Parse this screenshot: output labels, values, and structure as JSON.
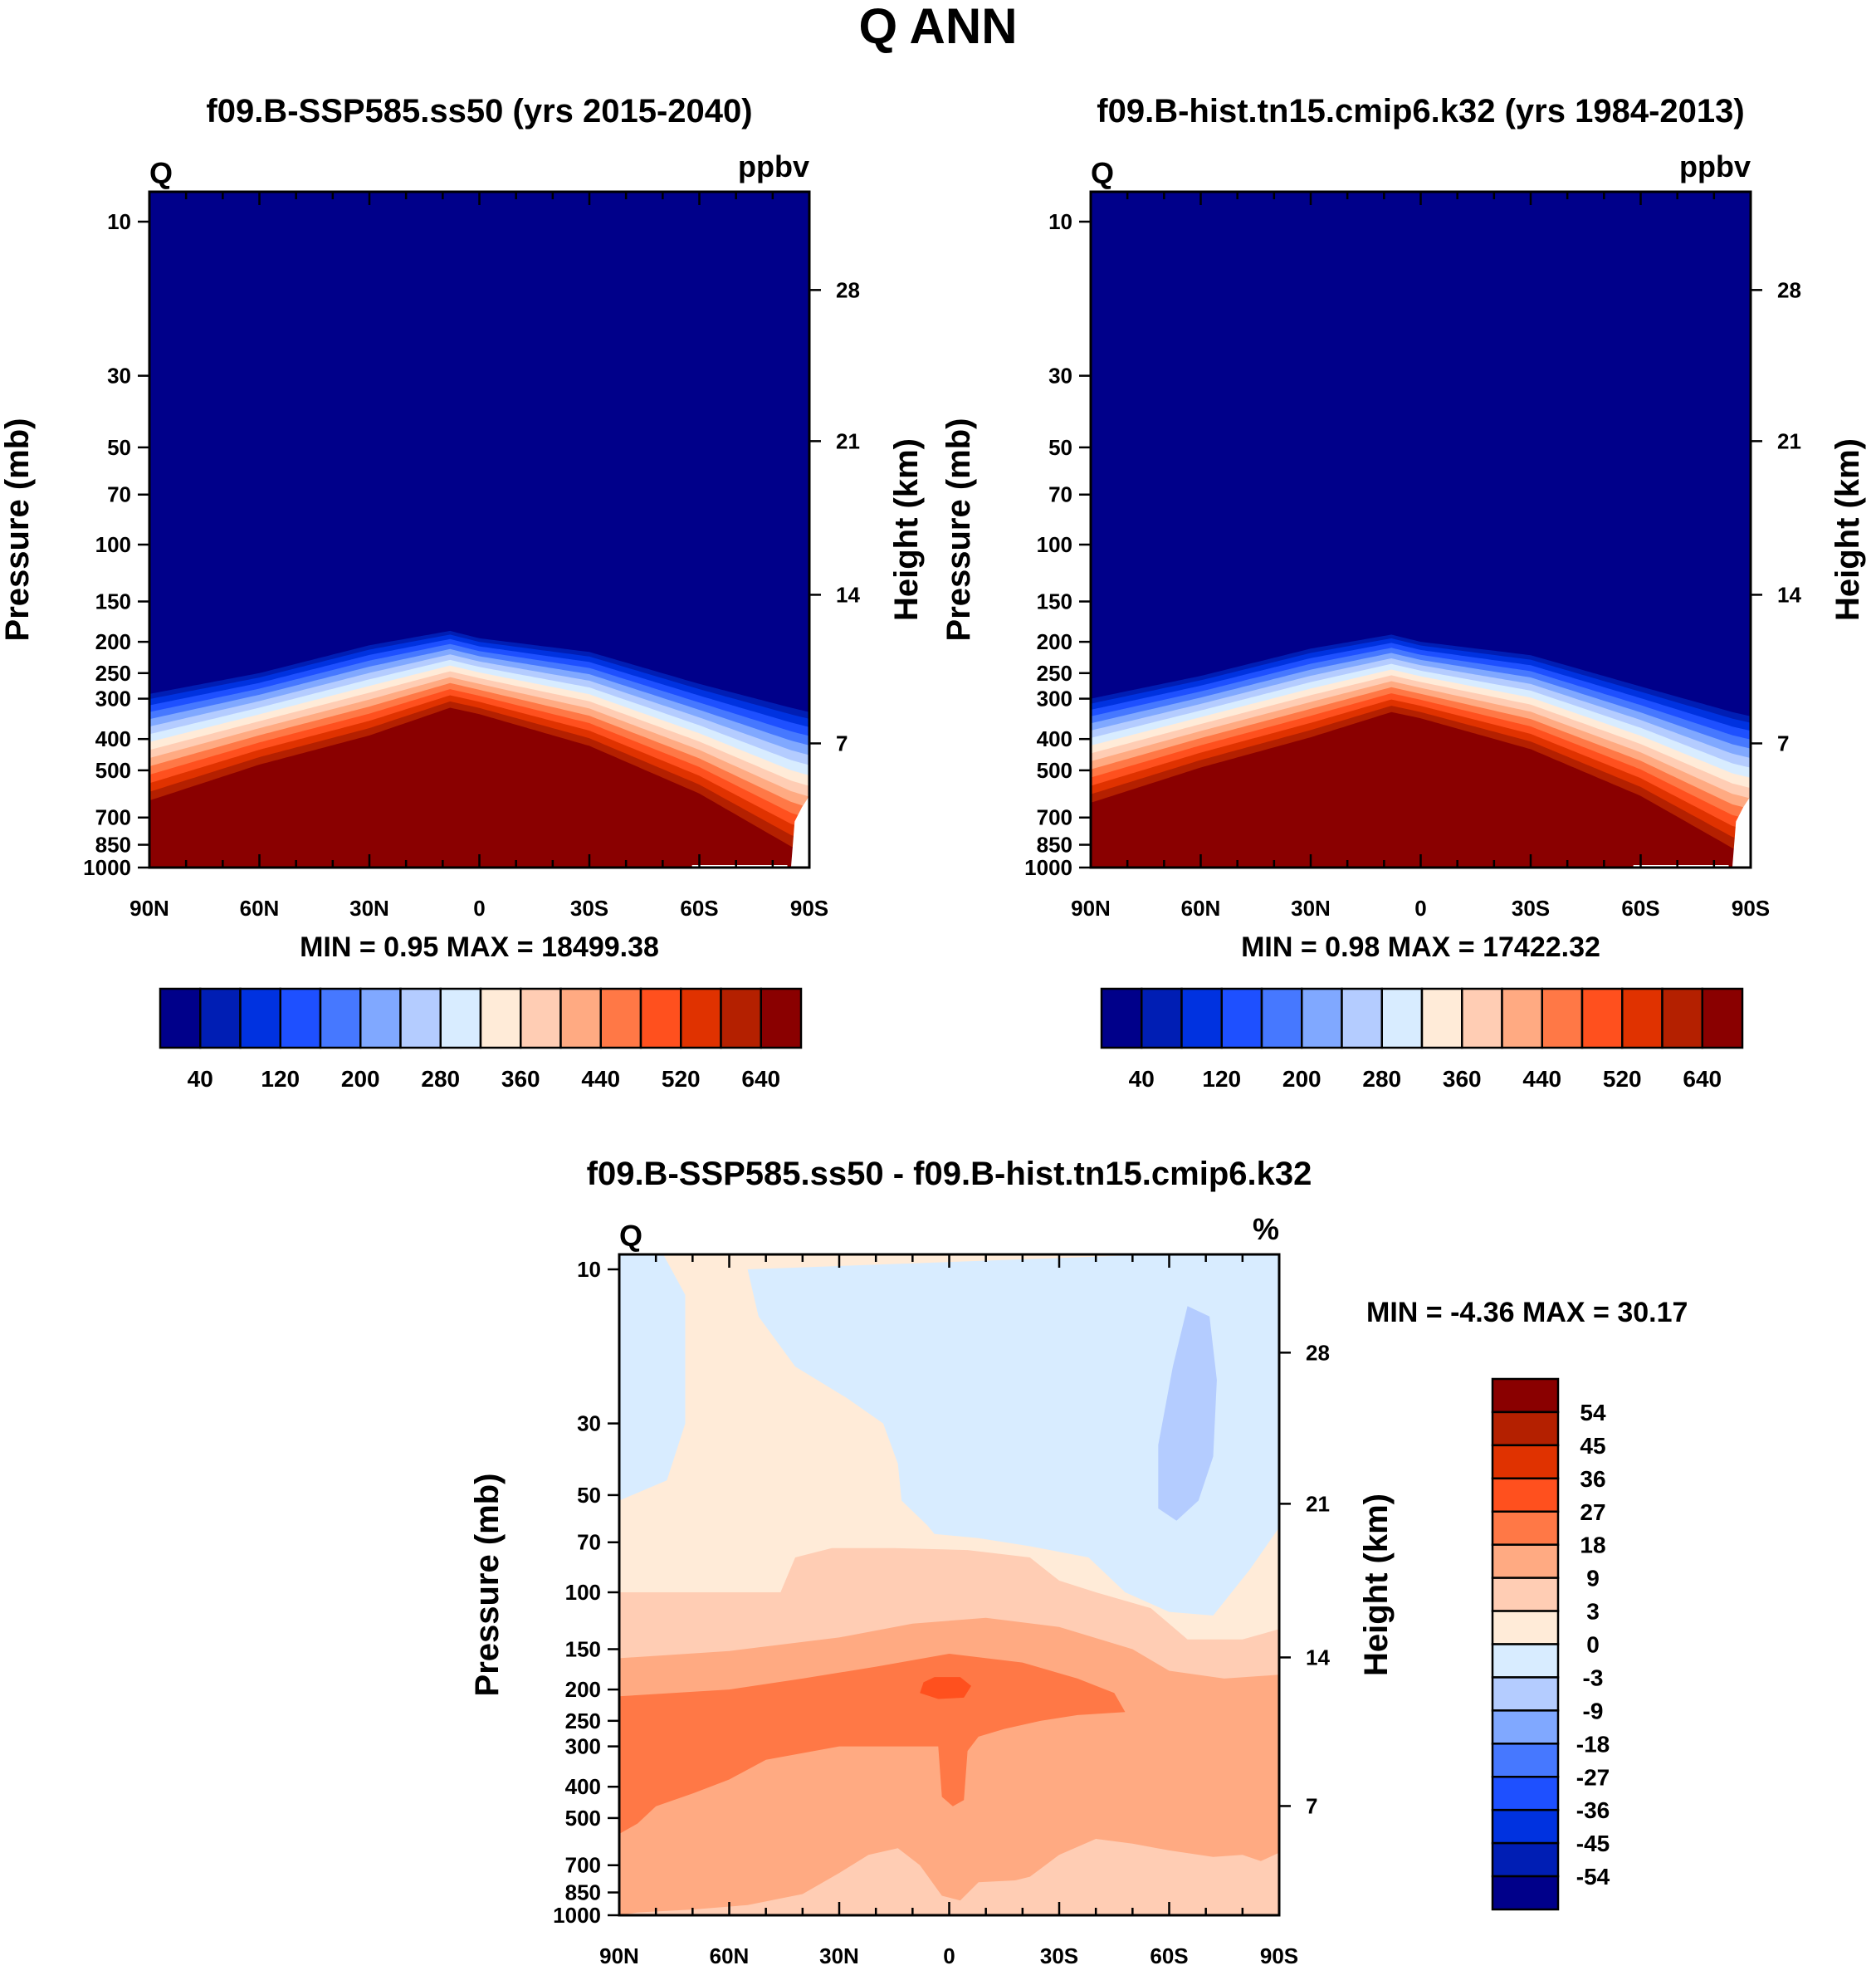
{
  "title": "Q ANN",
  "palette": [
    "#00008a",
    "#001eb4",
    "#0032e0",
    "#1e50ff",
    "#4678ff",
    "#80a8ff",
    "#b4ccff",
    "#d8ecff",
    "#ffebd8",
    "#ffcdb4",
    "#ffaa82",
    "#ff7846",
    "#ff501e",
    "#e03200",
    "#b42000",
    "#8a0000"
  ],
  "chart_data": [
    {
      "type": "heatmap",
      "title": "f09.B-SSP585.ss50 (yrs 2015-2040)",
      "left_label": "Q",
      "right_label": "ppbv",
      "xlabel": "",
      "ylabel": "Pressure (mb)",
      "ylabel_right": "Height (km)",
      "x_ticks": [
        "90N",
        "60N",
        "30N",
        "0",
        "30S",
        "60S",
        "90S"
      ],
      "y_ticks": [
        "10",
        "30",
        "50",
        "70",
        "100",
        "150",
        "200",
        "250",
        "300",
        "400",
        "500",
        "700",
        "850",
        "1000"
      ],
      "y_ticks_right": [
        "28",
        "21",
        "14",
        "7"
      ],
      "stats": "MIN =   0.95  MAX = 18499.38",
      "colorbar_labels": [
        "40",
        "120",
        "200",
        "280",
        "360",
        "440",
        "520",
        "640"
      ],
      "contour_edges": {
        "lat": [
          90,
          60,
          30,
          8,
          0,
          -30,
          -60,
          -85,
          -90
        ],
        "upper_p": [
          290,
          250,
          205,
          185,
          195,
          215,
          270,
          320,
          330
        ],
        "lower_p": [
          620,
          480,
          390,
          320,
          335,
          420,
          590,
          860,
          900
        ]
      }
    },
    {
      "type": "heatmap",
      "title": "f09.B-hist.tn15.cmip6.k32 (yrs 1984-2013)",
      "left_label": "Q",
      "right_label": "ppbv",
      "xlabel": "",
      "ylabel": "Pressure (mb)",
      "ylabel_right": "Height (km)",
      "x_ticks": [
        "90N",
        "60N",
        "30N",
        "0",
        "30S",
        "60S",
        "90S"
      ],
      "y_ticks": [
        "10",
        "30",
        "50",
        "70",
        "100",
        "150",
        "200",
        "250",
        "300",
        "400",
        "500",
        "700",
        "850",
        "1000"
      ],
      "y_ticks_right": [
        "28",
        "21",
        "14",
        "7"
      ],
      "stats": "MIN =   0.98  MAX = 17422.32",
      "colorbar_labels": [
        "40",
        "120",
        "200",
        "280",
        "360",
        "440",
        "520",
        "640"
      ],
      "contour_edges": {
        "lat": [
          90,
          60,
          30,
          8,
          0,
          -30,
          -60,
          -85,
          -90
        ],
        "upper_p": [
          300,
          255,
          210,
          190,
          200,
          220,
          275,
          330,
          340
        ],
        "lower_p": [
          630,
          490,
          395,
          330,
          345,
          430,
          600,
          870,
          900
        ]
      }
    },
    {
      "type": "heatmap",
      "title": "f09.B-SSP585.ss50 - f09.B-hist.tn15.cmip6.k32",
      "left_label": "Q",
      "right_label": "%",
      "xlabel": "",
      "ylabel": "Pressure (mb)",
      "ylabel_right": "Height (km)",
      "x_ticks": [
        "90N",
        "60N",
        "30N",
        "0",
        "30S",
        "60S",
        "90S"
      ],
      "y_ticks": [
        "10",
        "30",
        "50",
        "70",
        "100",
        "150",
        "200",
        "250",
        "300",
        "400",
        "500",
        "700",
        "850",
        "1000"
      ],
      "y_ticks_right": [
        "28",
        "21",
        "14",
        "7"
      ],
      "stats": "MIN =  -4.36  MAX =  30.17",
      "colorbar_labels": [
        "54",
        "45",
        "36",
        "27",
        "18",
        "9",
        "3",
        "0",
        "-3",
        "-9",
        "-18",
        "-27",
        "-36",
        "-45",
        "-54"
      ],
      "regions": [
        {
          "level": 8,
          "pts": [
            [
              90,
              8
            ],
            [
              -90,
              8
            ],
            [
              -90,
              1000
            ],
            [
              90,
              1000
            ]
          ]
        },
        {
          "level": 7,
          "pts": [
            [
              90,
              8
            ],
            [
              78,
              8
            ],
            [
              72,
              12
            ],
            [
              72,
              30
            ],
            [
              77,
              45
            ],
            [
              90,
              52
            ]
          ]
        },
        {
          "level": 7,
          "pts": [
            [
              -57,
              8
            ],
            [
              -90,
              8
            ],
            [
              -90,
              63
            ],
            [
              -82,
              85
            ],
            [
              -72,
              118
            ],
            [
              -60,
              115
            ],
            [
              -48,
              100
            ],
            [
              -38,
              78
            ],
            [
              -22,
              72
            ],
            [
              -8,
              68
            ],
            [
              4,
              66
            ],
            [
              6,
              62
            ],
            [
              13,
              52
            ],
            [
              14,
              40
            ],
            [
              18,
              30
            ],
            [
              28,
              25
            ],
            [
              42,
              20
            ],
            [
              52,
              14
            ],
            [
              55,
              10
            ]
          ]
        },
        {
          "level": 6,
          "pts": [
            [
              -65,
              13
            ],
            [
              -71,
              14
            ],
            [
              -73,
              22
            ],
            [
              -72,
              38
            ],
            [
              -68,
              52
            ],
            [
              -62,
              60
            ],
            [
              -57,
              55
            ],
            [
              -57,
              35
            ],
            [
              -61,
              20
            ]
          ]
        },
        {
          "level": 9,
          "pts": [
            [
              90,
              100
            ],
            [
              46,
              100
            ],
            [
              42,
              78
            ],
            [
              32,
              73
            ],
            [
              15,
              73
            ],
            [
              -5,
              74
            ],
            [
              -22,
              78
            ],
            [
              -30,
              92
            ],
            [
              -40,
              100
            ],
            [
              -55,
              112
            ],
            [
              -65,
              140
            ],
            [
              -80,
              140
            ],
            [
              -90,
              130
            ],
            [
              -90,
              1000
            ],
            [
              90,
              1000
            ]
          ]
        },
        {
          "level": 10,
          "pts": [
            [
              90,
              160
            ],
            [
              60,
              152
            ],
            [
              30,
              138
            ],
            [
              10,
              125
            ],
            [
              -10,
              120
            ],
            [
              -30,
              128
            ],
            [
              -50,
              150
            ],
            [
              -60,
              175
            ],
            [
              -75,
              185
            ],
            [
              -90,
              180
            ],
            [
              -90,
              640
            ],
            [
              -85,
              680
            ],
            [
              -80,
              650
            ],
            [
              -72,
              660
            ],
            [
              -60,
              630
            ],
            [
              -50,
              600
            ],
            [
              -40,
              580
            ],
            [
              -30,
              650
            ],
            [
              -22,
              760
            ],
            [
              -18,
              780
            ],
            [
              -8,
              790
            ],
            [
              -3,
              900
            ],
            [
              2,
              870
            ],
            [
              8,
              700
            ],
            [
              14,
              620
            ],
            [
              22,
              650
            ],
            [
              30,
              740
            ],
            [
              40,
              860
            ],
            [
              55,
              930
            ],
            [
              70,
              960
            ],
            [
              85,
              980
            ],
            [
              90,
              1000
            ]
          ]
        },
        {
          "level": 11,
          "pts": [
            [
              90,
              210
            ],
            [
              60,
              200
            ],
            [
              40,
              185
            ],
            [
              20,
              170
            ],
            [
              0,
              155
            ],
            [
              -20,
              165
            ],
            [
              -35,
              185
            ],
            [
              -45,
              205
            ],
            [
              -48,
              235
            ],
            [
              -35,
              240
            ],
            [
              -25,
              250
            ],
            [
              -15,
              265
            ],
            [
              -8,
              280
            ],
            [
              -5,
              310
            ],
            [
              -4,
              440
            ],
            [
              -1,
              460
            ],
            [
              2,
              430
            ],
            [
              3,
              300
            ],
            [
              10,
              300
            ],
            [
              30,
              300
            ],
            [
              50,
              330
            ],
            [
              60,
              380
            ],
            [
              70,
              420
            ],
            [
              80,
              460
            ],
            [
              85,
              520
            ],
            [
              90,
              560
            ]
          ]
        },
        {
          "level": 12,
          "pts": [
            [
              7,
              190
            ],
            [
              4,
              183
            ],
            [
              -3,
              183
            ],
            [
              -6,
              195
            ],
            [
              -4,
              212
            ],
            [
              3,
              214
            ],
            [
              8,
              205
            ]
          ]
        }
      ]
    }
  ]
}
